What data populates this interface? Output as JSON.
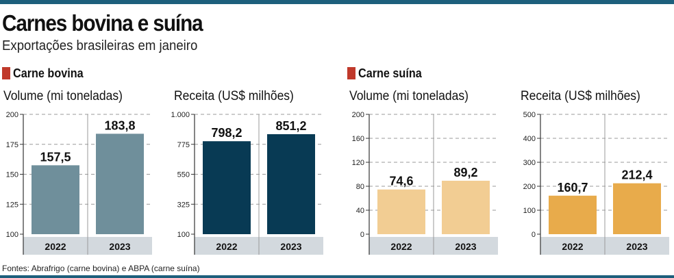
{
  "header": {
    "title": "Carnes bovina e suína",
    "subtitle": "Exportações brasileiras em janeiro"
  },
  "sections": [
    {
      "label": "Carne bovina",
      "color": "#c0392b"
    },
    {
      "label": "Carne suína",
      "color": "#c0392b"
    }
  ],
  "chart_data": [
    {
      "type": "bar",
      "section": "Carne bovina",
      "title": "Volume (mi toneladas)",
      "categories": [
        "2022",
        "2023"
      ],
      "values": [
        157.5,
        183.8
      ],
      "value_labels": [
        "157,5",
        "183,8"
      ],
      "ylim": [
        100,
        200
      ],
      "yticks": [
        "100",
        "125",
        "150",
        "175",
        "200"
      ],
      "color": "#6f8f9b"
    },
    {
      "type": "bar",
      "section": "Carne bovina",
      "title": "Receita (US$ milhões)",
      "categories": [
        "2022",
        "2023"
      ],
      "values": [
        798.2,
        851.2
      ],
      "value_labels": [
        "798,2",
        "851,2"
      ],
      "ylim": [
        100,
        1000
      ],
      "yticks": [
        "100",
        "325",
        "550",
        "775",
        "1.000"
      ],
      "color": "#083a54"
    },
    {
      "type": "bar",
      "section": "Carne suína",
      "title": "Volume (mi toneladas)",
      "categories": [
        "2022",
        "2023"
      ],
      "values": [
        74.6,
        89.2
      ],
      "value_labels": [
        "74,6",
        "89,2"
      ],
      "ylim": [
        0,
        200
      ],
      "yticks": [
        "0",
        "40",
        "80",
        "120",
        "160",
        "200"
      ],
      "color": "#f2cd93"
    },
    {
      "type": "bar",
      "section": "Carne suína",
      "title": "Receita (US$ milhões)",
      "categories": [
        "2022",
        "2023"
      ],
      "values": [
        160.7,
        212.4
      ],
      "value_labels": [
        "160,7",
        "212,4"
      ],
      "ylim": [
        0,
        500
      ],
      "yticks": [
        "0",
        "100",
        "200",
        "300",
        "400",
        "500"
      ],
      "color": "#e8ab4b"
    }
  ],
  "footer": {
    "source": "Fontes: Abrafrigo (carne bovina) e ABPA (carne suína)"
  }
}
